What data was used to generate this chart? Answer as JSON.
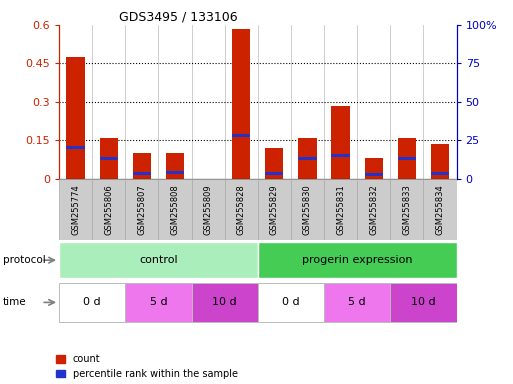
{
  "title": "GDS3495 / 133106",
  "samples": [
    "GSM255774",
    "GSM255806",
    "GSM255807",
    "GSM255808",
    "GSM255809",
    "GSM255828",
    "GSM255829",
    "GSM255830",
    "GSM255831",
    "GSM255832",
    "GSM255833",
    "GSM255834"
  ],
  "count_values": [
    0.475,
    0.16,
    0.1,
    0.1,
    0.0,
    0.585,
    0.12,
    0.16,
    0.285,
    0.08,
    0.16,
    0.135
  ],
  "pct_values": [
    0.2,
    0.13,
    0.03,
    0.04,
    0.0,
    0.28,
    0.03,
    0.13,
    0.15,
    0.025,
    0.13,
    0.03
  ],
  "left_ylim": [
    0,
    0.6
  ],
  "right_ylim": [
    0,
    100
  ],
  "left_yticks": [
    0,
    0.15,
    0.3,
    0.45,
    0.6
  ],
  "right_yticks": [
    0,
    25,
    50,
    75,
    100
  ],
  "left_yticklabels": [
    "0",
    "0.15",
    "0.3",
    "0.45",
    "0.6"
  ],
  "right_yticklabels": [
    "0",
    "25",
    "50",
    "75",
    "100%"
  ],
  "bar_color_red": "#cc2200",
  "bar_color_blue": "#2233cc",
  "bar_width": 0.55,
  "blue_bar_height": 0.012,
  "protocol_groups": [
    {
      "label": "control",
      "start": 0,
      "end": 6,
      "color": "#aaeebb"
    },
    {
      "label": "progerin expression",
      "start": 6,
      "end": 12,
      "color": "#44cc55"
    }
  ],
  "time_groups": [
    {
      "label": "0 d",
      "start": 0,
      "end": 2,
      "color": "#ffffff"
    },
    {
      "label": "5 d",
      "start": 2,
      "end": 4,
      "color": "#ee77ee"
    },
    {
      "label": "10 d",
      "start": 4,
      "end": 6,
      "color": "#cc44cc"
    },
    {
      "label": "0 d",
      "start": 6,
      "end": 8,
      "color": "#ffffff"
    },
    {
      "label": "5 d",
      "start": 8,
      "end": 10,
      "color": "#ee77ee"
    },
    {
      "label": "10 d",
      "start": 10,
      "end": 12,
      "color": "#cc44cc"
    }
  ],
  "legend_items": [
    {
      "label": "count",
      "color": "#cc2200"
    },
    {
      "label": "percentile rank within the sample",
      "color": "#2233cc"
    }
  ],
  "tick_label_color_left": "#cc2200",
  "tick_label_color_right": "#0000cc",
  "sample_box_color": "#cccccc",
  "sample_box_edge": "#aaaaaa"
}
